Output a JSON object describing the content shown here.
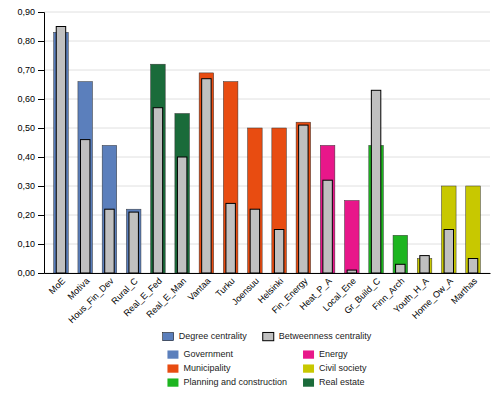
{
  "chart_data": {
    "type": "bar",
    "categories": [
      "MoE",
      "Motiva",
      "Hous_Fin_Dev",
      "Rural_C",
      "Real_E_Fed",
      "Real_E_Man",
      "Vantaa",
      "Turku",
      "Joensuu",
      "Helsinki",
      "Fin_Energy",
      "Heat_P_A",
      "Local_Ene",
      "Gr_Build_C",
      "Finn_Arch",
      "Youth_H_A",
      "Home_Ow_A",
      "Marthas"
    ],
    "series": [
      {
        "name": "Degree centrality",
        "color": "#5b7fbc",
        "colors": [
          "#5b7fbc",
          "#5b7fbc",
          "#5b7fbc",
          "#5b7fbc",
          "#1a6b3a",
          "#1a6b3a",
          "#e84c11",
          "#e84c11",
          "#e84c11",
          "#e84c11",
          "#e84c11",
          "#e8178a",
          "#e8178a",
          "#1db520",
          "#1db520",
          "#c8c800",
          "#c8c800",
          "#c8c800"
        ],
        "values": [
          0.83,
          0.66,
          0.44,
          0.22,
          0.72,
          0.55,
          0.69,
          0.66,
          0.5,
          0.5,
          0.52,
          0.44,
          0.25,
          0.44,
          0.13,
          0.05,
          0.3,
          0.3
        ]
      },
      {
        "name": "Betweenness centrality",
        "color": "#c0c0c0",
        "values": [
          0.85,
          0.46,
          0.22,
          0.21,
          0.57,
          0.4,
          0.67,
          0.24,
          0.22,
          0.15,
          0.51,
          0.32,
          0.01,
          0.63,
          0.03,
          0.06,
          0.15,
          0.05
        ]
      }
    ],
    "sectors": [
      {
        "name": "Government",
        "color": "#5b7fbc"
      },
      {
        "name": "Municipality",
        "color": "#e84c11"
      },
      {
        "name": "Planning and construction",
        "color": "#1db520"
      },
      {
        "name": "Energy",
        "color": "#e8178a"
      },
      {
        "name": "Civil society",
        "color": "#c8c800"
      },
      {
        "name": "Real estate",
        "color": "#1a6b3a"
      }
    ],
    "ylim": [
      0,
      0.9
    ],
    "yticks": [
      {
        "value": 0.0,
        "label": "0,00"
      },
      {
        "value": 0.1,
        "label": "0,10"
      },
      {
        "value": 0.2,
        "label": "0,20"
      },
      {
        "value": 0.3,
        "label": "0,30"
      },
      {
        "value": 0.4,
        "label": "0,40"
      },
      {
        "value": 0.5,
        "label": "0,50"
      },
      {
        "value": 0.6,
        "label": "0,60"
      },
      {
        "value": 0.7,
        "label": "0,70"
      },
      {
        "value": 0.8,
        "label": "0,80"
      },
      {
        "value": 0.9,
        "label": "0,90"
      }
    ],
    "grid": true
  }
}
